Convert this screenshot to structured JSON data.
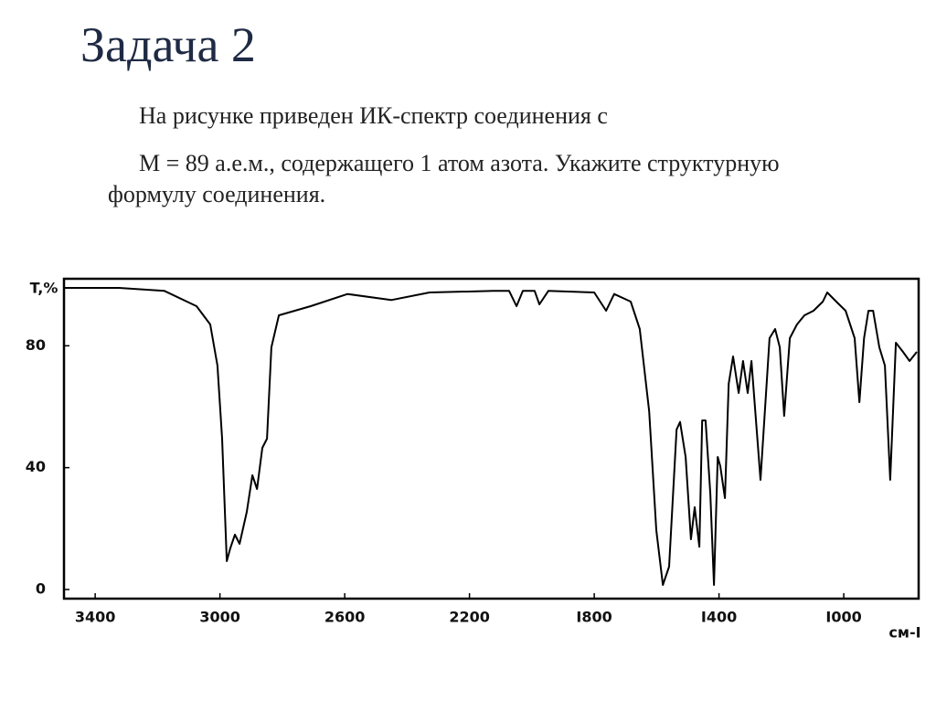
{
  "slide": {
    "title": "Задача 2",
    "paragraphs": [
      "На рисунке приведен ИК-спектр соединения с",
      "М = 89 а.е.м., содержащего 1 атом азота. Укажите структурную формулу соединения."
    ]
  },
  "chart_data": {
    "type": "line",
    "ylabel": "T,%",
    "xlabel": "см-I",
    "color": "#000000",
    "grid": false,
    "xlim": [
      3500,
      760
    ],
    "ylim": [
      -3,
      102
    ],
    "xticks": [
      3400,
      3000,
      2600,
      2200,
      {
        "value": 1800,
        "label": "I800"
      },
      {
        "value": 1400,
        "label": "I400"
      },
      {
        "value": 1000,
        "label": "I000"
      }
    ],
    "yticks": [
      0,
      40,
      80
    ],
    "x": [
      3500,
      3324,
      3178,
      3075,
      3031,
      3008,
      2993,
      2978,
      2967,
      2952,
      2937,
      2914,
      2896,
      2881,
      2864,
      2849,
      2835,
      2811,
      2709,
      2591,
      2451,
      2328,
      2123,
      2073,
      2049,
      2029,
      1991,
      1976,
      1947,
      1800,
      1762,
      1736,
      1683,
      1654,
      1624,
      1601,
      1580,
      1560,
      1536,
      1525,
      1507,
      1490,
      1478,
      1463,
      1454,
      1443,
      1428,
      1416,
      1404,
      1396,
      1381,
      1369,
      1355,
      1337,
      1323,
      1308,
      1296,
      1267,
      1238,
      1220,
      1205,
      1191,
      1173,
      1150,
      1126,
      1097,
      1067,
      1053,
      1024,
      994,
      965,
      950,
      935,
      921,
      906,
      886,
      868,
      851,
      833,
      810,
      789,
      766
    ],
    "values": [
      99,
      99,
      98,
      93,
      87,
      73.5,
      49.5,
      9.3,
      13.5,
      18,
      15,
      25.5,
      37.5,
      33,
      46.5,
      49.5,
      79.5,
      90,
      93,
      97,
      95,
      97.5,
      98,
      98,
      93,
      98,
      98,
      93.6,
      98,
      97.5,
      91.5,
      97,
      94.5,
      85.5,
      58.5,
      19.5,
      1.5,
      7.5,
      52.5,
      55,
      43.5,
      16.5,
      27,
      14,
      55.5,
      55.5,
      31.5,
      1.5,
      43.5,
      40.5,
      30,
      67.5,
      76.5,
      64.5,
      75,
      64.5,
      75,
      36,
      82.5,
      85.5,
      79.5,
      57,
      82.5,
      87,
      90,
      91.5,
      94.5,
      97.5,
      94.5,
      91.5,
      82.5,
      61.5,
      82.5,
      91.5,
      91.5,
      79.5,
      73.5,
      36,
      81,
      78,
      75,
      78
    ]
  }
}
